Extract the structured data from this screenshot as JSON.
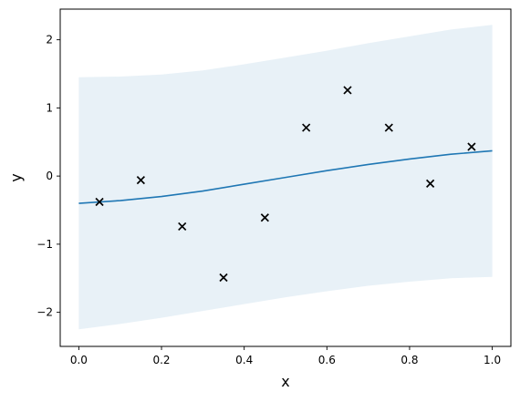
{
  "chart_data": {
    "type": "line",
    "title": "",
    "xlabel": "x",
    "ylabel": "y",
    "xlim": [
      -0.045,
      1.045
    ],
    "ylim": [
      -2.5,
      2.45
    ],
    "xticks": [
      0.0,
      0.2,
      0.4,
      0.6,
      0.8,
      1.0
    ],
    "xtick_labels": [
      "0.0",
      "0.2",
      "0.4",
      "0.6",
      "0.8",
      "1.0"
    ],
    "yticks": [
      -2,
      -1,
      0,
      1,
      2
    ],
    "ytick_labels": [
      "−2",
      "−1",
      "0",
      "1",
      "2"
    ],
    "grid": false,
    "legend": "none",
    "colors": {
      "mean_line": "#1f77b4",
      "band_fill": "#1f77b4",
      "band_opacity": 0.1,
      "markers": "#000000",
      "axes": "#000000"
    },
    "series": [
      {
        "kind": "band",
        "x": [
          0.0,
          0.1,
          0.2,
          0.3,
          0.4,
          0.5,
          0.6,
          0.7,
          0.8,
          0.9,
          1.0
        ],
        "lower": [
          -2.25,
          -2.17,
          -2.08,
          -1.98,
          -1.88,
          -1.78,
          -1.69,
          -1.61,
          -1.55,
          -1.5,
          -1.48
        ],
        "upper": [
          1.45,
          1.46,
          1.49,
          1.55,
          1.64,
          1.74,
          1.84,
          1.95,
          2.05,
          2.15,
          2.22
        ]
      },
      {
        "kind": "line",
        "x": [
          0.0,
          0.1,
          0.2,
          0.3,
          0.4,
          0.5,
          0.6,
          0.7,
          0.8,
          0.9,
          1.0
        ],
        "y": [
          -0.4,
          -0.36,
          -0.3,
          -0.22,
          -0.12,
          -0.02,
          0.08,
          0.17,
          0.25,
          0.32,
          0.37
        ]
      },
      {
        "kind": "scatter",
        "marker": "x",
        "x": [
          0.05,
          0.15,
          0.25,
          0.35,
          0.45,
          0.55,
          0.65,
          0.75,
          0.85,
          0.95
        ],
        "y": [
          -0.38,
          -0.06,
          -0.74,
          -1.49,
          -0.61,
          0.71,
          1.26,
          0.71,
          -0.11,
          0.43
        ]
      }
    ]
  }
}
